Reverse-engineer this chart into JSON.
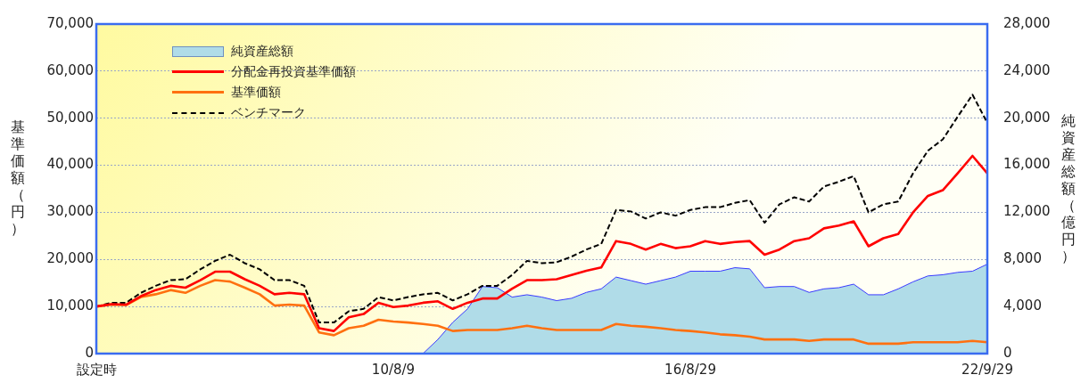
{
  "chart_data": {
    "type": "line",
    "ylabel": "基準価額（円）",
    "y2label": "純資産総額（億円）",
    "categories": [
      "設定時",
      null,
      null,
      null,
      null,
      null,
      null,
      null,
      null,
      null,
      null,
      null,
      null,
      null,
      null,
      null,
      null,
      null,
      null,
      null,
      "10/8/9",
      null,
      null,
      null,
      null,
      null,
      null,
      null,
      null,
      null,
      null,
      null,
      null,
      null,
      null,
      null,
      null,
      null,
      null,
      null,
      "16/8/29",
      null,
      null,
      null,
      null,
      null,
      null,
      null,
      null,
      null,
      null,
      null,
      null,
      null,
      null,
      null,
      null,
      null,
      null,
      null,
      "22/9/29"
    ],
    "series": [
      {
        "name": "純資産総額",
        "type": "area",
        "axis": "y2",
        "color": "#b0dce8",
        "values": [
          0,
          0,
          0,
          0,
          0,
          0,
          0,
          0,
          0,
          0,
          0,
          0,
          0,
          0,
          0,
          0,
          0,
          0,
          0,
          0,
          0,
          0,
          0,
          1200,
          2650,
          3800,
          5700,
          5600,
          4800,
          5000,
          4800,
          4500,
          4700,
          5200,
          5500,
          6500,
          6200,
          5900,
          6200,
          6500,
          7000,
          7000,
          7000,
          7300,
          7200,
          5600,
          5700,
          5700,
          5200,
          5500,
          5600,
          5900,
          5000,
          5000,
          5500,
          6100,
          6600,
          6700,
          6900,
          7000,
          7600
        ]
      },
      {
        "name": "分配金再投資基準価額",
        "color": "#ff0000",
        "line_style": "solid",
        "values": [
          10000,
          10500,
          10400,
          12200,
          13500,
          14400,
          14000,
          15600,
          17400,
          17400,
          15800,
          14400,
          12600,
          12900,
          12600,
          5400,
          4800,
          7700,
          8400,
          10800,
          9900,
          10200,
          10800,
          11100,
          9500,
          10800,
          11700,
          11700,
          13800,
          15600,
          15600,
          15800,
          16700,
          17600,
          18300,
          23900,
          23300,
          22100,
          23300,
          22400,
          22800,
          23900,
          23300,
          23700,
          23900,
          21000,
          22100,
          23900,
          24500,
          26600,
          27200,
          28100,
          22800,
          24500,
          25400,
          30000,
          33500,
          34700,
          38300,
          42000,
          38300
        ]
      },
      {
        "name": "基準価額",
        "color": "#ff7010",
        "line_style": "solid",
        "values": [
          10000,
          10400,
          10300,
          12000,
          12600,
          13500,
          12900,
          14400,
          15600,
          15300,
          14000,
          12600,
          10200,
          10400,
          10200,
          4500,
          3900,
          5400,
          5900,
          7200,
          6800,
          6600,
          6300,
          5900,
          4800,
          5000,
          5000,
          5000,
          5400,
          5900,
          5400,
          5000,
          5000,
          5000,
          5000,
          6300,
          5900,
          5700,
          5400,
          5000,
          4800,
          4500,
          4100,
          3900,
          3600,
          3000,
          3000,
          3000,
          2700,
          3000,
          3000,
          3000,
          2100,
          2100,
          2100,
          2400,
          2400,
          2400,
          2400,
          2700,
          2400
        ]
      },
      {
        "name": "ベンチマーク",
        "color": "#000000",
        "line_style": "dashed",
        "values": [
          10000,
          10800,
          10800,
          12900,
          14400,
          15600,
          15800,
          17900,
          19700,
          21000,
          19200,
          17900,
          15600,
          15600,
          14400,
          6600,
          6600,
          9000,
          9500,
          12000,
          11300,
          12000,
          12600,
          12900,
          11300,
          12600,
          14400,
          14400,
          16700,
          19700,
          19200,
          19400,
          20600,
          22100,
          23300,
          30500,
          30200,
          28700,
          30000,
          29300,
          30500,
          31100,
          31100,
          32000,
          32600,
          27800,
          31700,
          33200,
          32300,
          35500,
          36500,
          37700,
          30000,
          31700,
          32300,
          38300,
          43100,
          45500,
          50300,
          55000,
          49000
        ]
      }
    ],
    "ylim": [
      0,
      70000
    ],
    "yticks": [
      0,
      {
        "value": 10000,
        "label": "10,000"
      },
      {
        "value": 20000,
        "label": "20,000"
      },
      {
        "value": 30000,
        "label": "30,000"
      },
      {
        "value": 40000,
        "label": "40,000"
      },
      {
        "value": 50000,
        "label": "50,000"
      },
      {
        "value": 60000,
        "label": "60,000"
      },
      {
        "value": 70000,
        "label": "70,000"
      }
    ],
    "y2lim": [
      0,
      28000
    ],
    "y2ticks": [
      0,
      {
        "value": 4000,
        "label": "4,000"
      },
      {
        "value": 8000,
        "label": "8,000"
      },
      {
        "value": 12000,
        "label": "12,000"
      },
      {
        "value": 16000,
        "label": "16,000"
      },
      {
        "value": 20000,
        "label": "20,000"
      },
      {
        "value": 24000,
        "label": "24,000"
      },
      {
        "value": 28000,
        "label": "28,000"
      }
    ],
    "grid": "y",
    "legend": "top left",
    "marker": "none"
  }
}
